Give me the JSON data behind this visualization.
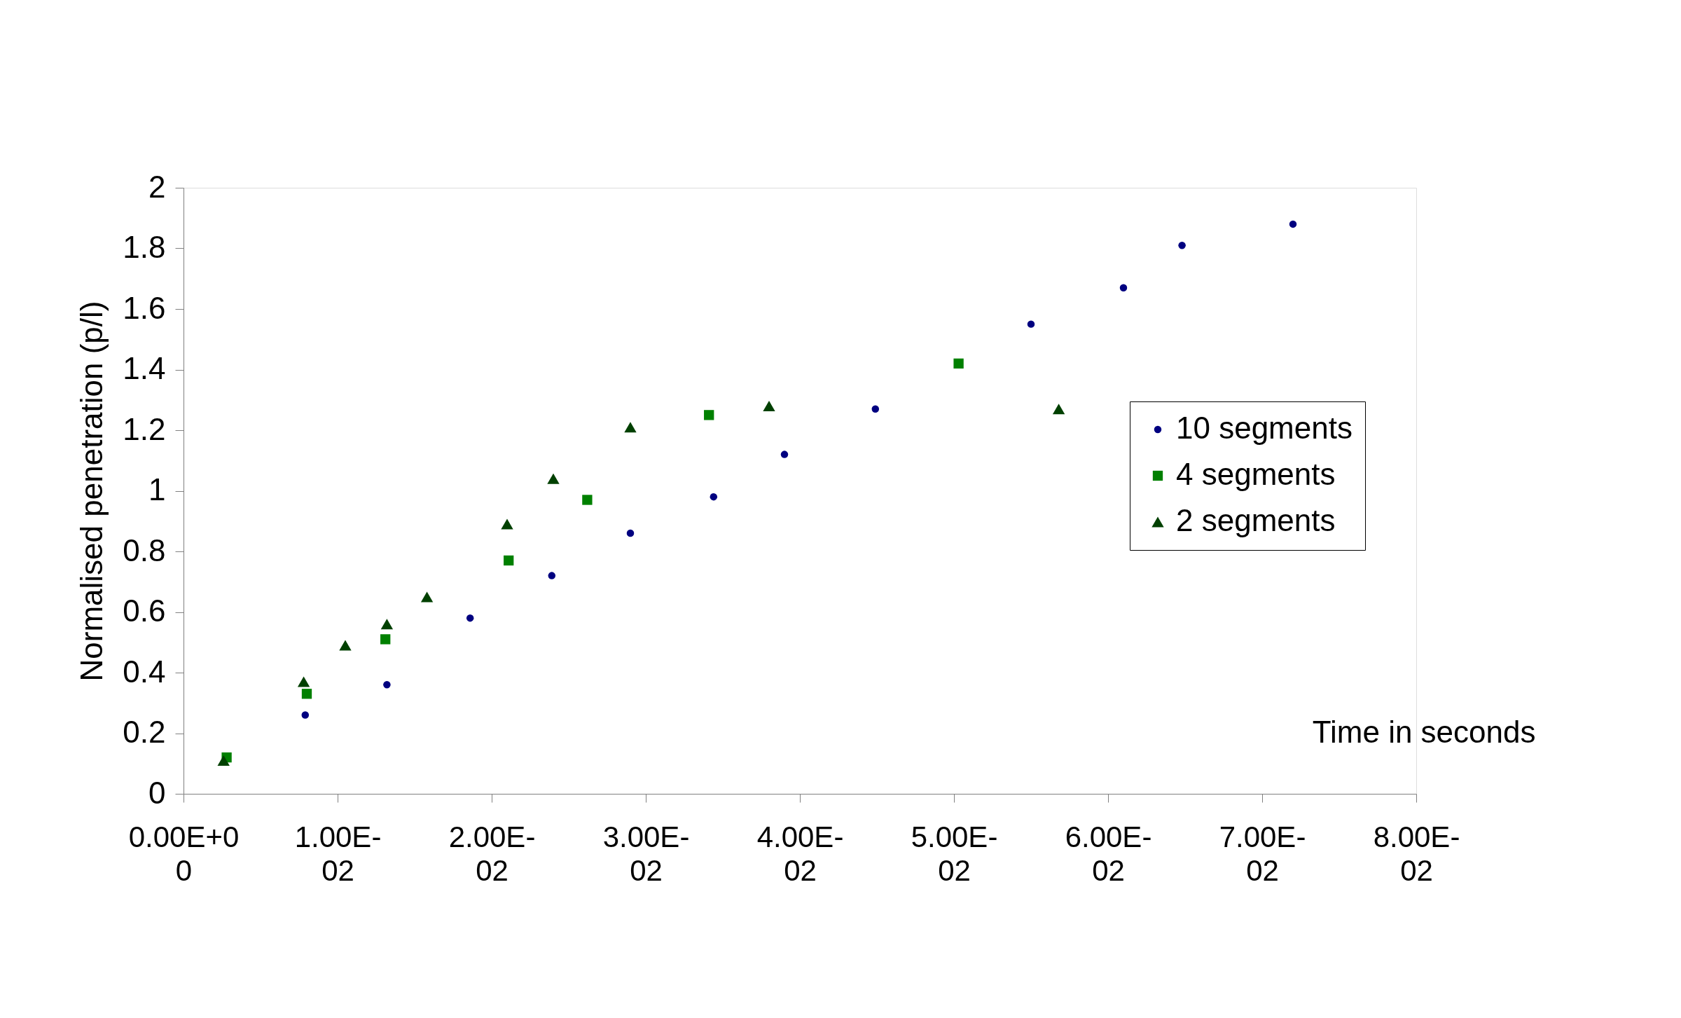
{
  "chart_data": {
    "type": "scatter",
    "xlabel": "Time in seconds",
    "ylabel": "Normalised penetration (p/l)",
    "xlim": [
      0,
      0.08
    ],
    "ylim": [
      0,
      2
    ],
    "xticks": [
      {
        "value": 0,
        "label": "0.00E+00"
      },
      {
        "value": 0.01,
        "label": "1.00E-02"
      },
      {
        "value": 0.02,
        "label": "2.00E-02"
      },
      {
        "value": 0.03,
        "label": "3.00E-02"
      },
      {
        "value": 0.04,
        "label": "4.00E-02"
      },
      {
        "value": 0.05,
        "label": "5.00E-02"
      },
      {
        "value": 0.06,
        "label": "6.00E-02"
      },
      {
        "value": 0.07,
        "label": "7.00E-02"
      },
      {
        "value": 0.08,
        "label": "8.00E-02"
      }
    ],
    "yticks": [
      0,
      0.2,
      0.4,
      0.6,
      0.8,
      1,
      1.2,
      1.4,
      1.6,
      1.8,
      2
    ],
    "grid": false,
    "legend": "right",
    "series": [
      {
        "name": "10 segments",
        "color": "#000080",
        "marker": "circle",
        "x": [
          0.0079,
          0.0132,
          0.0186,
          0.0239,
          0.029,
          0.0344,
          0.039,
          0.0449,
          0.055,
          0.061,
          0.0648,
          0.072
        ],
        "values": [
          0.26,
          0.36,
          0.58,
          0.72,
          0.86,
          0.98,
          1.12,
          1.27,
          1.55,
          1.67,
          1.81,
          1.88
        ]
      },
      {
        "name": "4 segments",
        "color": "#008000",
        "marker": "square",
        "x": [
          0.0028,
          0.008,
          0.0131,
          0.0211,
          0.0262,
          0.0341,
          0.0503
        ],
        "values": [
          0.12,
          0.33,
          0.51,
          0.77,
          0.97,
          1.25,
          1.42
        ]
      },
      {
        "name": "2 segments",
        "color": "#004000",
        "marker": "triangle",
        "x": [
          0.0026,
          0.0078,
          0.0105,
          0.0132,
          0.0158,
          0.021,
          0.024,
          0.029,
          0.038,
          0.0568
        ],
        "values": [
          0.11,
          0.37,
          0.49,
          0.56,
          0.65,
          0.89,
          1.04,
          1.21,
          1.28,
          1.27
        ]
      }
    ]
  }
}
